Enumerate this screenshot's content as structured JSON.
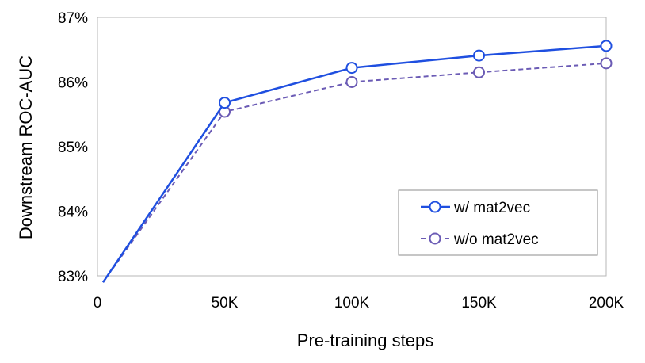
{
  "chart_data": {
    "type": "line",
    "title": "",
    "xlabel": "Pre-training steps",
    "ylabel": "Downstream ROC-AUC",
    "x": [
      0,
      50000,
      100000,
      150000,
      200000
    ],
    "x_tick_labels": [
      "0",
      "50K",
      "100K",
      "150K",
      "200K"
    ],
    "xlim": [
      0,
      200000
    ],
    "y_tick_labels": [
      "83%",
      "84%",
      "85%",
      "86%",
      "87%"
    ],
    "y_ticks": [
      83,
      84,
      85,
      86,
      87
    ],
    "ylim": [
      83,
      87
    ],
    "grid": false,
    "legend_position": "lower-right",
    "series": [
      {
        "name": "w/ mat2vec",
        "values": [
          82.9,
          85.68,
          86.22,
          86.41,
          86.56
        ],
        "color": "#1F4FE0",
        "line_style": "solid",
        "marker": "open-circle",
        "first_point_marker": false
      },
      {
        "name": "w/o mat2vec",
        "values": [
          82.9,
          85.54,
          86.0,
          86.15,
          86.29
        ],
        "color": "#6B5BB5",
        "line_style": "dashed",
        "marker": "open-circle",
        "first_point_marker": false
      }
    ]
  }
}
